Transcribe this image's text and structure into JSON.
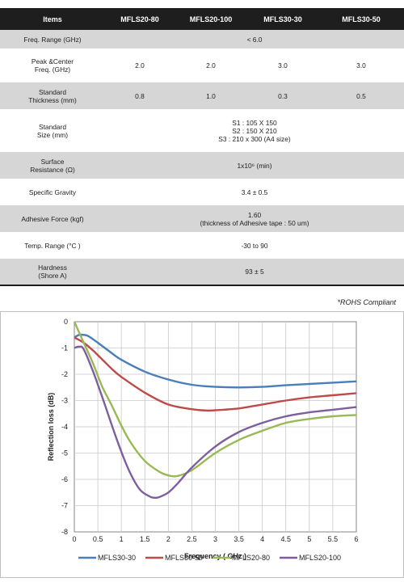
{
  "table": {
    "header": [
      "Items",
      "MFLS20-80",
      "MFLS20-100",
      "MFLS30-30",
      "MFLS30-50"
    ],
    "rows": [
      {
        "item": "Freq. Range (GHz)",
        "span": "< 6.0"
      },
      {
        "item": "Peak &Center\nFreq. (GHz)",
        "values": [
          "2.0",
          "2.0",
          "3.0",
          "3.0"
        ]
      },
      {
        "item": "Standard\nThickness (mm)",
        "values": [
          "0.8",
          "1.0",
          "0.3",
          "0.5"
        ]
      },
      {
        "item": "Standard\nSize (mm)",
        "span": "S1 : 105 X 150\nS2 : 150 X 210\nS3 : 210 x 300 (A4 size)"
      },
      {
        "item": "Surface\nResistance (Ω)",
        "span": "1x10⁶ (min)"
      },
      {
        "item": "Specific Gravity",
        "span": "3.4 ± 0.5"
      },
      {
        "item": "Adhesive Force (kgf)",
        "span": "1.60\n(thickness of Adhesive tape : 50 um)"
      },
      {
        "item": "Temp. Range (°C )",
        "span": "-30  to 90"
      },
      {
        "item": "Hardness\n(Shore A)",
        "span": "93 ± 5"
      }
    ]
  },
  "note": "*ROHS Compliant",
  "chart_data": {
    "type": "line",
    "xlabel": "Frequency ( GHz )",
    "ylabel": "Reflection loss (dB)",
    "xlim": [
      0,
      6
    ],
    "ylim": [
      -8,
      0
    ],
    "xticks": [
      "0",
      "0.5",
      "1",
      "1.5",
      "2",
      "2.5",
      "3",
      "3.5",
      "4",
      "4.5",
      "5",
      "5.5",
      "6"
    ],
    "yticks": [
      "0",
      "-1",
      "-2",
      "-3",
      "-4",
      "-5",
      "-6",
      "-7",
      "-8"
    ],
    "grid": true,
    "legend": "bottom",
    "series": [
      {
        "name": "MFLS30-30",
        "color": "#4a7ebb",
        "x": [
          0,
          0.1,
          0.2,
          0.3,
          0.5,
          0.8,
          1.0,
          1.5,
          2.0,
          2.5,
          3.0,
          3.5,
          4.0,
          4.5,
          5.0,
          5.5,
          6.0
        ],
        "y": [
          -0.6,
          -0.5,
          -0.5,
          -0.55,
          -0.8,
          -1.2,
          -1.45,
          -1.9,
          -2.2,
          -2.4,
          -2.48,
          -2.5,
          -2.48,
          -2.42,
          -2.37,
          -2.32,
          -2.27
        ]
      },
      {
        "name": "MFLS30-50",
        "color": "#be4b48",
        "x": [
          0,
          0.2,
          0.4,
          0.6,
          0.8,
          1.0,
          1.5,
          2.0,
          2.5,
          2.8,
          3.0,
          3.5,
          4.0,
          4.5,
          5.0,
          5.5,
          6.0
        ],
        "y": [
          -0.6,
          -0.8,
          -1.1,
          -1.45,
          -1.8,
          -2.1,
          -2.7,
          -3.15,
          -3.33,
          -3.38,
          -3.37,
          -3.3,
          -3.15,
          -3.0,
          -2.88,
          -2.8,
          -2.72
        ]
      },
      {
        "name": "MFLS20-80",
        "color": "#98b954",
        "x": [
          0,
          0.2,
          0.4,
          0.6,
          0.8,
          1.0,
          1.2,
          1.5,
          1.8,
          2.0,
          2.2,
          2.5,
          3.0,
          3.5,
          4.0,
          4.5,
          5.0,
          5.5,
          6.0
        ],
        "y": [
          0,
          -0.8,
          -1.6,
          -2.5,
          -3.2,
          -3.95,
          -4.6,
          -5.3,
          -5.7,
          -5.85,
          -5.87,
          -5.65,
          -5.0,
          -4.5,
          -4.15,
          -3.85,
          -3.7,
          -3.6,
          -3.55
        ]
      },
      {
        "name": "MFLS20-100",
        "color": "#7d5fa0",
        "x": [
          0,
          0.1,
          0.2,
          0.4,
          0.6,
          0.8,
          1.0,
          1.2,
          1.4,
          1.6,
          1.7,
          1.8,
          2.0,
          2.2,
          2.5,
          3.0,
          3.5,
          4.0,
          4.5,
          5.0,
          5.5,
          6.0
        ],
        "y": [
          -1.0,
          -0.95,
          -1.05,
          -1.9,
          -2.9,
          -3.95,
          -4.95,
          -5.8,
          -6.4,
          -6.65,
          -6.7,
          -6.68,
          -6.5,
          -6.15,
          -5.55,
          -4.75,
          -4.2,
          -3.85,
          -3.6,
          -3.45,
          -3.35,
          -3.25
        ]
      }
    ]
  }
}
